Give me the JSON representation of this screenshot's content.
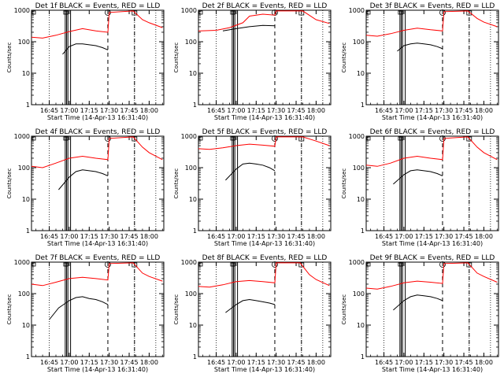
{
  "start_time_label": "Start Time (14-Apr-13 16:31:40)",
  "ylabel": "Counts/sec",
  "x_tick_labels": [
    "16:45",
    "17:00",
    "17:15",
    "17:30",
    "17:45",
    "18:00"
  ],
  "y_tick_labels": [
    "1",
    "10",
    "100",
    "1000"
  ],
  "colors": {
    "events": "#000000",
    "lld": "#ff0000"
  },
  "chart_data": [
    {
      "type": "line",
      "title": "Det 1f BLACK = Events, RED = LLD",
      "xlim": [
        "16:31:40",
        "18:11:00"
      ],
      "ylim": [
        1,
        1000
      ],
      "yscale": "log",
      "series": [
        {
          "name": "Events",
          "x": [
            "16:55",
            "17:00",
            "17:05",
            "17:10",
            "17:15",
            "17:20",
            "17:25",
            "17:29"
          ],
          "y": [
            40,
            70,
            85,
            85,
            80,
            75,
            65,
            55
          ]
        },
        {
          "name": "LLD",
          "x": [
            "16:31:40",
            "16:40",
            "16:50",
            "17:00",
            "17:10",
            "17:20",
            "17:29",
            "17:30",
            "17:48",
            "17:55",
            "18:00",
            "18:10"
          ],
          "y": [
            140,
            130,
            160,
            210,
            260,
            220,
            200,
            850,
            950,
            500,
            400,
            280
          ]
        }
      ]
    },
    {
      "type": "line",
      "title": "Det 2f BLACK = Events, RED = LLD",
      "xlim": [
        "16:31:40",
        "18:11:00"
      ],
      "ylim": [
        1,
        1000
      ],
      "yscale": "log",
      "series": [
        {
          "name": "Events",
          "x": [
            "16:50",
            "17:00",
            "17:10",
            "17:20",
            "17:29"
          ],
          "y": [
            220,
            260,
            300,
            330,
            320
          ]
        },
        {
          "name": "LLD",
          "x": [
            "16:31:40",
            "16:45",
            "16:55",
            "17:05",
            "17:10",
            "17:20",
            "17:29",
            "17:30",
            "17:50",
            "18:00",
            "18:10"
          ],
          "y": [
            220,
            230,
            280,
            400,
            650,
            750,
            700,
            950,
            950,
            500,
            380
          ]
        }
      ]
    },
    {
      "type": "line",
      "title": "Det 3f BLACK = Events, RED = LLD",
      "xlim": [
        "16:31:40",
        "18:11:00"
      ],
      "ylim": [
        1,
        1000
      ],
      "yscale": "log",
      "series": [
        {
          "name": "Events",
          "x": [
            "16:55",
            "17:00",
            "17:05",
            "17:10",
            "17:15",
            "17:20",
            "17:25",
            "17:29"
          ],
          "y": [
            50,
            75,
            85,
            90,
            85,
            80,
            70,
            60
          ]
        },
        {
          "name": "LLD",
          "x": [
            "16:31:40",
            "16:40",
            "16:50",
            "17:00",
            "17:10",
            "17:20",
            "17:29",
            "17:30",
            "17:48",
            "17:55",
            "18:00",
            "18:10"
          ],
          "y": [
            160,
            150,
            180,
            230,
            270,
            240,
            220,
            900,
            950,
            550,
            420,
            300
          ]
        }
      ]
    },
    {
      "type": "line",
      "title": "Det 4f BLACK = Events, RED = LLD",
      "xlim": [
        "16:31:40",
        "18:11:00"
      ],
      "ylim": [
        1,
        1000
      ],
      "yscale": "log",
      "series": [
        {
          "name": "Events",
          "x": [
            "16:52",
            "17:00",
            "17:05",
            "17:10",
            "17:15",
            "17:20",
            "17:25",
            "17:29"
          ],
          "y": [
            20,
            50,
            75,
            85,
            80,
            75,
            65,
            55
          ]
        },
        {
          "name": "LLD",
          "x": [
            "16:31:40",
            "16:40",
            "16:50",
            "17:00",
            "17:10",
            "17:20",
            "17:29",
            "17:30",
            "17:48",
            "17:55",
            "18:00",
            "18:10"
          ],
          "y": [
            110,
            100,
            140,
            200,
            230,
            200,
            180,
            850,
            950,
            450,
            300,
            180
          ]
        }
      ]
    },
    {
      "type": "line",
      "title": "Det 5f BLACK = Events, RED = LLD",
      "xlim": [
        "16:31:40",
        "18:11:00"
      ],
      "ylim": [
        1,
        1000
      ],
      "yscale": "log",
      "series": [
        {
          "name": "Events",
          "x": [
            "16:52",
            "17:00",
            "17:05",
            "17:10",
            "17:15",
            "17:20",
            "17:25",
            "17:29"
          ],
          "y": [
            40,
            90,
            130,
            140,
            130,
            120,
            100,
            80
          ]
        },
        {
          "name": "LLD",
          "x": [
            "16:31:40",
            "16:40",
            "16:50",
            "17:00",
            "17:10",
            "17:20",
            "17:29",
            "17:30",
            "17:50",
            "18:00",
            "18:10"
          ],
          "y": [
            400,
            380,
            430,
            500,
            560,
            520,
            480,
            950,
            950,
            700,
            500
          ]
        }
      ]
    },
    {
      "type": "line",
      "title": "Det 6f BLACK = Events, RED = LLD",
      "xlim": [
        "16:31:40",
        "18:11:00"
      ],
      "ylim": [
        1,
        1000
      ],
      "yscale": "log",
      "series": [
        {
          "name": "Events",
          "x": [
            "16:52",
            "17:00",
            "17:05",
            "17:10",
            "17:15",
            "17:20",
            "17:25",
            "17:29"
          ],
          "y": [
            30,
            60,
            80,
            85,
            80,
            75,
            65,
            55
          ]
        },
        {
          "name": "LLD",
          "x": [
            "16:31:40",
            "16:40",
            "16:50",
            "17:00",
            "17:10",
            "17:20",
            "17:29",
            "17:30",
            "17:48",
            "17:55",
            "18:00",
            "18:10"
          ],
          "y": [
            120,
            110,
            140,
            200,
            230,
            200,
            180,
            850,
            950,
            450,
            300,
            180
          ]
        }
      ]
    },
    {
      "type": "line",
      "title": "Det 7f BLACK = Events, RED = LLD",
      "xlim": [
        "16:31:40",
        "18:11:00"
      ],
      "ylim": [
        1,
        1000
      ],
      "yscale": "log",
      "series": [
        {
          "name": "Events",
          "x": [
            "16:45",
            "16:52",
            "17:00",
            "17:05",
            "17:10",
            "17:15",
            "17:20",
            "17:25",
            "17:29"
          ],
          "y": [
            15,
            35,
            60,
            75,
            80,
            70,
            65,
            55,
            45
          ]
        },
        {
          "name": "LLD",
          "x": [
            "16:31:40",
            "16:40",
            "16:50",
            "17:00",
            "17:10",
            "17:20",
            "17:29",
            "17:30",
            "17:48",
            "17:55",
            "18:00",
            "18:10"
          ],
          "y": [
            200,
            180,
            230,
            300,
            330,
            300,
            270,
            900,
            950,
            450,
            350,
            250
          ]
        }
      ]
    },
    {
      "type": "line",
      "title": "Det 8f BLACK = Events, RED = LLD",
      "xlim": [
        "16:31:40",
        "18:11:00"
      ],
      "ylim": [
        1,
        1000
      ],
      "yscale": "log",
      "series": [
        {
          "name": "Events",
          "x": [
            "16:52",
            "17:00",
            "17:05",
            "17:10",
            "17:15",
            "17:20",
            "17:25",
            "17:29"
          ],
          "y": [
            25,
            45,
            60,
            65,
            60,
            55,
            50,
            45
          ]
        },
        {
          "name": "LLD",
          "x": [
            "16:31:40",
            "16:40",
            "16:50",
            "17:00",
            "17:10",
            "17:20",
            "17:29",
            "17:30",
            "17:48",
            "17:55",
            "18:00",
            "18:10"
          ],
          "y": [
            170,
            160,
            190,
            240,
            260,
            240,
            220,
            950,
            950,
            400,
            280,
            180
          ]
        }
      ]
    },
    {
      "type": "line",
      "title": "Det 9f BLACK = Events, RED = LLD",
      "xlim": [
        "16:31:40",
        "18:11:00"
      ],
      "ylim": [
        1,
        1000
      ],
      "yscale": "log",
      "series": [
        {
          "name": "Events",
          "x": [
            "16:52",
            "17:00",
            "17:05",
            "17:10",
            "17:15",
            "17:20",
            "17:25",
            "17:29"
          ],
          "y": [
            30,
            60,
            80,
            90,
            85,
            80,
            70,
            60
          ]
        },
        {
          "name": "LLD",
          "x": [
            "16:31:40",
            "16:40",
            "16:50",
            "17:00",
            "17:10",
            "17:20",
            "17:29",
            "17:30",
            "17:48",
            "17:55",
            "18:00",
            "18:10"
          ],
          "y": [
            150,
            140,
            170,
            220,
            250,
            230,
            210,
            900,
            950,
            450,
            350,
            230
          ]
        }
      ]
    }
  ],
  "markers": {
    "dotted_x": [
      "16:45",
      "17:49",
      "18:05"
    ],
    "solid_x": [
      "16:57",
      "16:58",
      "16:59",
      "17:01"
    ],
    "dashed_x": [
      "17:29",
      "17:49"
    ]
  }
}
